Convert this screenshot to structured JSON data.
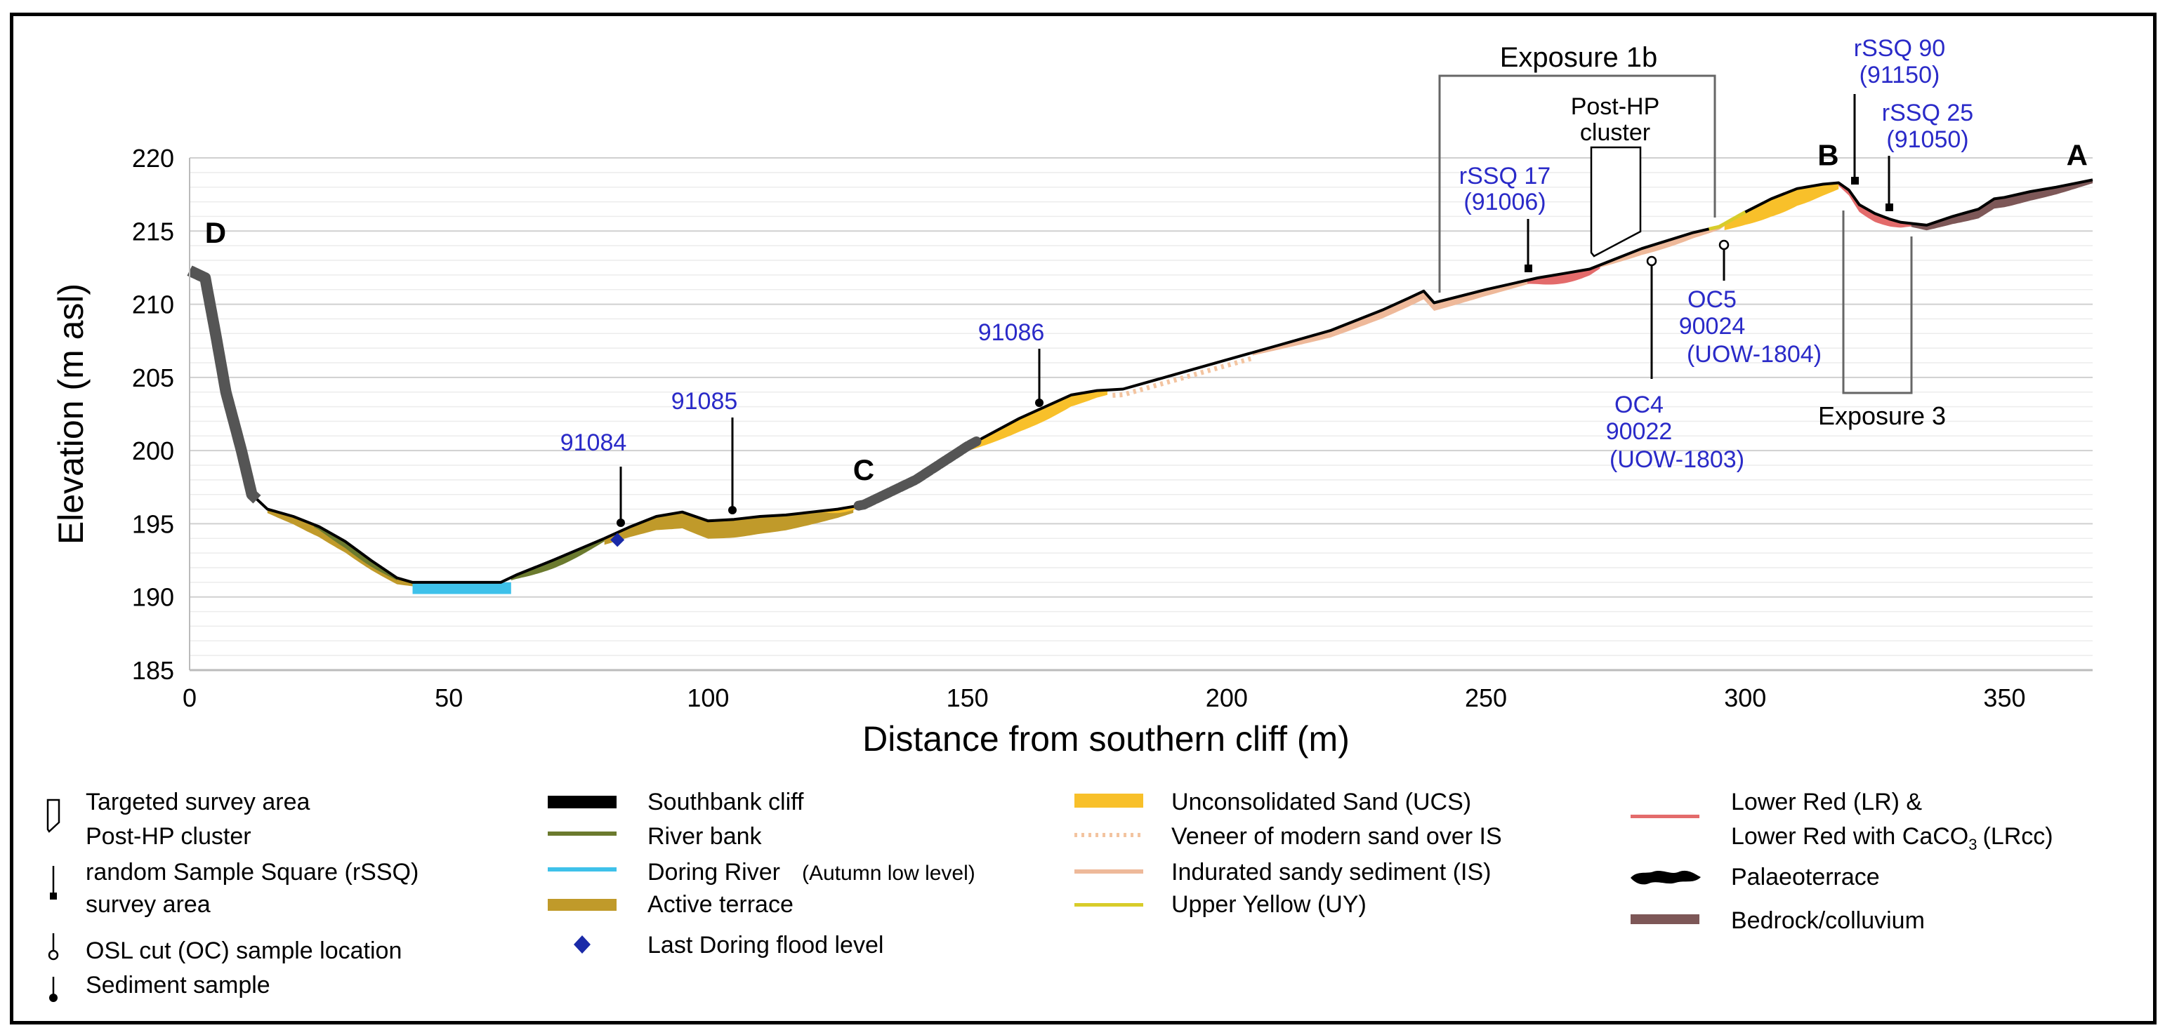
{
  "chart_data": {
    "type": "line",
    "title": "",
    "xlabel": "Distance from southern cliff (m)",
    "ylabel": "Elevation (m asl)",
    "xlim": [
      0,
      367
    ],
    "ylim": [
      185,
      220
    ],
    "xticks": [
      0,
      50,
      100,
      150,
      200,
      250,
      300,
      350
    ],
    "yticks": [
      185,
      190,
      195,
      200,
      205,
      210,
      215,
      220
    ],
    "grid": "horizontal every 1 m",
    "colors": {
      "profile": "#000000",
      "southbank_cliff": "#000000",
      "river_bank": "#6b7a2e",
      "doring_river": "#3ec1ea",
      "active_terrace": "#c09a2a",
      "flood_marker": "#1a2aa8",
      "ucs": "#f8c02a",
      "veneer": "#f3c4a0",
      "is": "#eeb99a",
      "uy": "#d8cc2a",
      "lr": "#e36b6b",
      "palaeoterrace": "#555555",
      "bedrock": "#7d5757",
      "annotation_blue": "#2a2ac8"
    },
    "profile": {
      "x": [
        0,
        3,
        5,
        7,
        10,
        12,
        15,
        20,
        25,
        30,
        35,
        40,
        43,
        50,
        60,
        63,
        70,
        80,
        85,
        90,
        95,
        100,
        105,
        110,
        115,
        120,
        125,
        130,
        140,
        150,
        160,
        170,
        175,
        180,
        190,
        200,
        210,
        220,
        230,
        235,
        238,
        240,
        250,
        260,
        265,
        270,
        280,
        290,
        295,
        300,
        305,
        310,
        315,
        318,
        320,
        322,
        325,
        328,
        330,
        335,
        340,
        345,
        348,
        350,
        355,
        360,
        367
      ],
      "y": [
        212.3,
        211.8,
        208,
        204,
        200,
        197,
        196,
        195.5,
        194.8,
        193.8,
        192.5,
        191.3,
        191.0,
        191.0,
        191.0,
        191.5,
        192.5,
        194,
        194.8,
        195.5,
        195.8,
        195.2,
        195.3,
        195.5,
        195.6,
        195.8,
        196,
        196.3,
        198,
        200.3,
        202.2,
        203.8,
        204.1,
        204.2,
        205.2,
        206.2,
        207.2,
        208.2,
        209.6,
        210.4,
        210.9,
        210.1,
        211,
        211.8,
        212.1,
        212.4,
        213.8,
        214.9,
        215.3,
        216.3,
        217.2,
        217.9,
        218.2,
        218.3,
        217.8,
        216.8,
        216.2,
        215.8,
        215.6,
        215.4,
        216,
        216.5,
        217.2,
        217.3,
        217.7,
        218,
        218.5
      ]
    },
    "axis_labels": {
      "x": "Distance from southern cliff (m)",
      "y": "Elevation (m asl)"
    },
    "point_labels": [
      {
        "text": "D",
        "x": 5,
        "y": 214.2
      },
      {
        "text": "C",
        "x": 130,
        "y": 198
      },
      {
        "text": "B",
        "x": 316,
        "y": 219.5
      },
      {
        "text": "A",
        "x": 364,
        "y": 219.5
      }
    ],
    "annotations": {
      "s91084": "91084",
      "s91085": "91085",
      "s91086": "91086",
      "rssq17_a": "rSSQ 17",
      "rssq17_b": "(91006)",
      "rssq90_a": "rSSQ 90",
      "rssq90_b": "(91150)",
      "rssq25_a": "rSSQ 25",
      "rssq25_b": "(91050)",
      "oc4_a": "OC4",
      "oc4_b": "90022",
      "oc4_c": "(UOW-1803)",
      "oc5_a": "OC5",
      "oc5_b": "90024",
      "oc5_c": "(UOW-1804)",
      "exposure1b": "Exposure 1b",
      "exposure3": "Exposure 3",
      "posthp_a": "Post-HP",
      "posthp_b": "cluster"
    },
    "legend": {
      "col1": [
        "Targeted survey area",
        "Post-HP cluster",
        "random Sample Square (rSSQ)",
        "survey area",
        "OSL cut (OC) sample location",
        "Sediment sample"
      ],
      "col2": [
        "Southbank cliff",
        "River bank",
        "Doring River",
        "(Autumn low level)",
        "Active terrace",
        "Last Doring flood level"
      ],
      "col3": [
        "Unconsolidated Sand (UCS)",
        "Veneer of modern sand over IS",
        "Indurated sandy sediment  (IS)",
        "Upper Yellow (UY)"
      ],
      "col4": [
        "Lower Red (LR) &",
        "Lower Red with CaCO",
        "3",
        "(LRcc)",
        "Palaeoterrace",
        "Bedrock/colluvium"
      ]
    }
  }
}
